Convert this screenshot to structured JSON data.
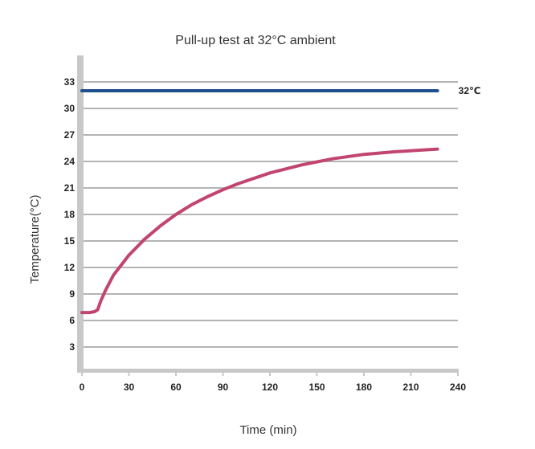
{
  "chart_data": {
    "type": "line",
    "title": "Pull-up test at 32°C ambient",
    "xlabel": "Time (min)",
    "ylabel": "Temperature(°C)",
    "xlim": [
      0,
      240
    ],
    "ylim": [
      0,
      36
    ],
    "xticks": [
      "0",
      "30",
      "60",
      "90",
      "120",
      "180",
      "150",
      "210",
      "240"
    ],
    "xtick_values": [
      0,
      30,
      60,
      90,
      120,
      180,
      150,
      210,
      240
    ],
    "yticks": [
      "3",
      "6",
      "9",
      "12",
      "15",
      "18",
      "21",
      "24",
      "27",
      "30",
      "33"
    ],
    "ytick_values": [
      3,
      6,
      9,
      12,
      15,
      18,
      21,
      24,
      27,
      30,
      33
    ],
    "grid": "horizontal",
    "colors": {
      "ambient": "#1f4e8c",
      "temperature": "#c2456e",
      "grid": "#b4b4b4",
      "axis": "#c8c8c8"
    },
    "series": [
      {
        "key": "ambient",
        "x": [
          0,
          227
        ],
        "y": [
          32,
          32
        ]
      },
      {
        "key": "temperature",
        "x": [
          0,
          5,
          8,
          10,
          12,
          15,
          20,
          30,
          40,
          50,
          60,
          70,
          80,
          90,
          100,
          120,
          140,
          160,
          180,
          200,
          227
        ],
        "y": [
          6.9,
          6.9,
          7.0,
          7.2,
          8.2,
          9.4,
          11.1,
          13.4,
          15.2,
          16.7,
          18.0,
          19.1,
          20.0,
          20.8,
          21.5,
          22.7,
          23.6,
          24.3,
          24.8,
          25.1,
          25.4
        ]
      }
    ],
    "annotations": [
      {
        "text": "32℃",
        "x": 227,
        "y": 32
      }
    ]
  }
}
